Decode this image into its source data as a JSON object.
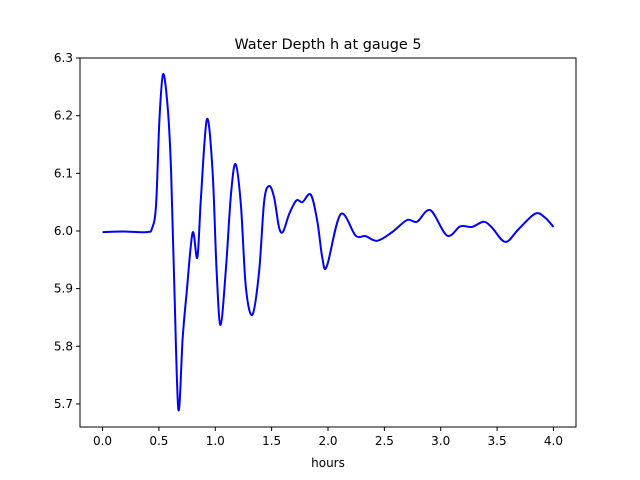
{
  "chart_data": {
    "type": "line",
    "title": "Water Depth h at gauge 5",
    "xlabel": "hours",
    "ylabel": "",
    "xlim": [
      -0.2,
      4.2
    ],
    "ylim": [
      5.66,
      6.3
    ],
    "xticks": [
      0.0,
      0.5,
      1.0,
      1.5,
      2.0,
      2.5,
      3.0,
      3.5,
      4.0
    ],
    "xtick_labels": [
      "0.0",
      "0.5",
      "1.0",
      "1.5",
      "2.0",
      "2.5",
      "3.0",
      "3.5",
      "4.0"
    ],
    "yticks": [
      5.7,
      5.8,
      5.9,
      6.0,
      6.1,
      6.2,
      6.3
    ],
    "ytick_labels": [
      "5.7",
      "5.8",
      "5.9",
      "6.0",
      "6.1",
      "6.2",
      "6.3"
    ],
    "grid": false,
    "series": [
      {
        "name": "h",
        "color": "#0000ff",
        "x": [
          0.0,
          0.18,
          0.39,
          0.44,
          0.475,
          0.504,
          0.537,
          0.578,
          0.608,
          0.637,
          0.673,
          0.711,
          0.746,
          0.799,
          0.841,
          0.873,
          0.926,
          0.976,
          1.012,
          1.047,
          1.095,
          1.139,
          1.18,
          1.227,
          1.272,
          1.33,
          1.389,
          1.434,
          1.478,
          1.522,
          1.566,
          1.602,
          1.655,
          1.72,
          1.773,
          1.847,
          1.905,
          1.95,
          1.99,
          2.112,
          2.245,
          2.333,
          2.436,
          2.569,
          2.702,
          2.79,
          2.908,
          3.056,
          3.174,
          3.277,
          3.381,
          3.454,
          3.573,
          3.69,
          3.838,
          3.926,
          4.0
        ],
        "y": [
          5.998,
          5.999,
          5.998,
          6.005,
          6.046,
          6.191,
          6.272,
          6.214,
          6.104,
          5.902,
          5.69,
          5.815,
          5.893,
          5.997,
          5.954,
          6.058,
          6.194,
          6.104,
          5.93,
          5.837,
          5.936,
          6.063,
          6.116,
          6.046,
          5.901,
          5.855,
          5.93,
          6.052,
          6.078,
          6.058,
          6.006,
          5.999,
          6.029,
          6.053,
          6.05,
          6.063,
          6.017,
          5.953,
          5.939,
          6.029,
          5.992,
          5.991,
          5.983,
          5.998,
          6.019,
          6.016,
          6.036,
          5.992,
          6.008,
          6.007,
          6.016,
          6.006,
          5.981,
          6.003,
          6.03,
          6.023,
          6.007
        ]
      }
    ]
  }
}
